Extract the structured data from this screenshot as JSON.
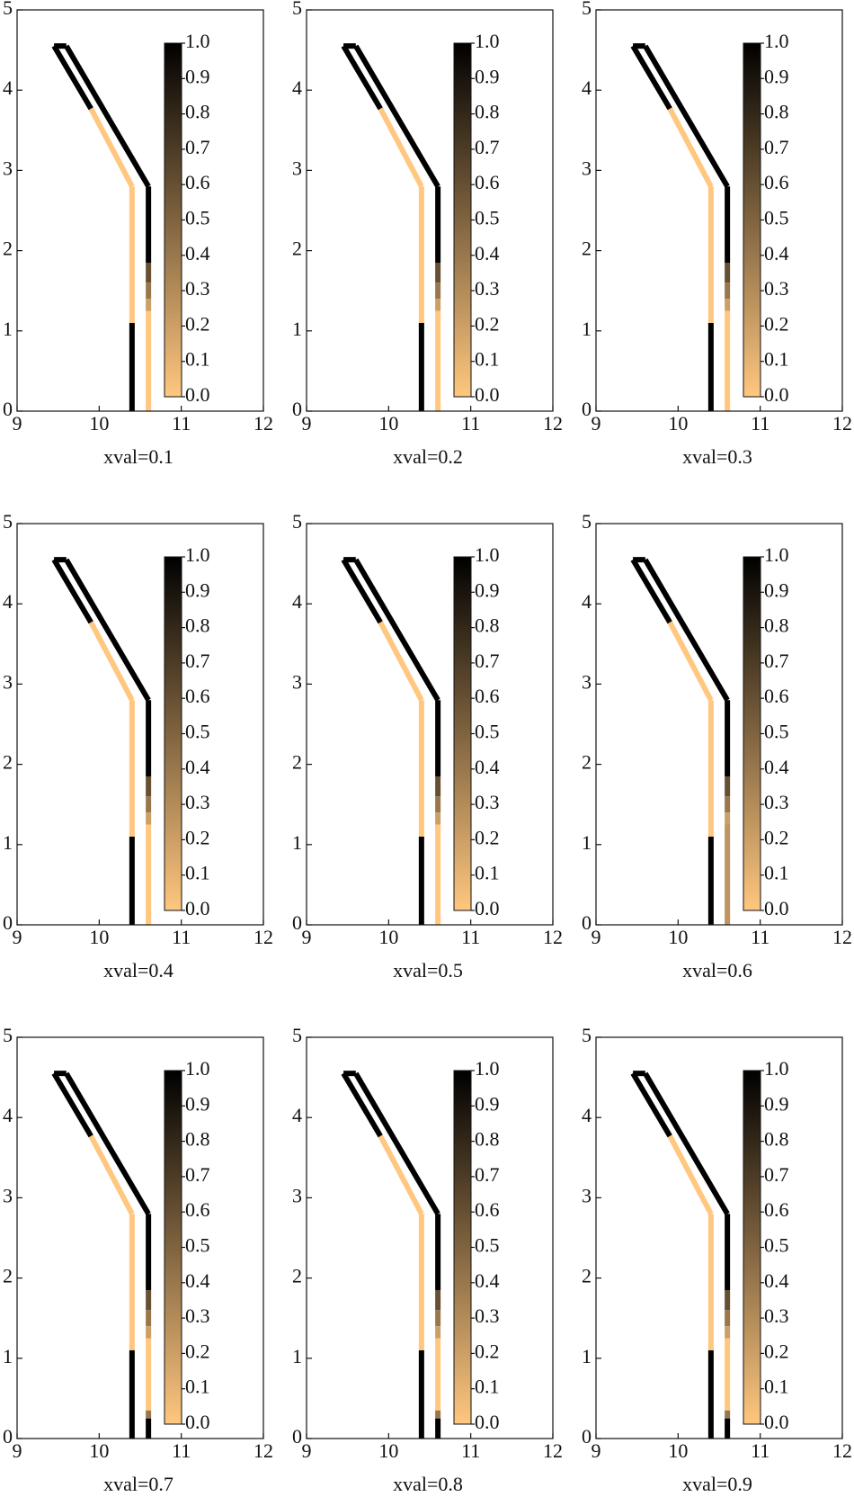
{
  "chart_data": [
    {
      "type": "line",
      "xlabel": "xval=0.1",
      "xlim": [
        9,
        12
      ],
      "ylim": [
        0,
        5
      ],
      "xticks": [
        9,
        10,
        11,
        12
      ],
      "yticks": [
        0,
        1,
        2,
        3,
        4,
        5
      ],
      "clim": [
        0,
        1
      ],
      "cticks": [
        {
          "value": 0,
          "label": "0.0"
        },
        0.1,
        0.2,
        0.3,
        0.4,
        0.5,
        0.6,
        0.7,
        0.8,
        0.9,
        {
          "value": 1,
          "label": "1.0"
        }
      ],
      "colormap": [
        "#ffc77f",
        "#000000"
      ],
      "x": [
        10.4,
        10.4,
        10.4,
        9.9,
        9.45,
        9.6,
        10.6,
        10.6,
        10.6,
        10.6,
        10.6,
        10.6
      ],
      "y": [
        0,
        1.1,
        2.8,
        3.77,
        4.55,
        4.55,
        2.8,
        1.85,
        1.6,
        1.4,
        1.25,
        0
      ],
      "values": [
        1,
        0,
        0,
        1,
        1,
        1,
        1,
        0.6,
        0.4,
        0.2,
        0,
        0
      ]
    },
    {
      "type": "line",
      "xlabel": "xval=0.2",
      "xlim": [
        9,
        12
      ],
      "ylim": [
        0,
        5
      ],
      "xticks": [
        9,
        10,
        11,
        12
      ],
      "yticks": [
        0,
        1,
        2,
        3,
        4,
        5
      ],
      "clim": [
        0,
        1
      ],
      "cticks": [
        {
          "value": 0,
          "label": "0.0"
        },
        0.1,
        0.2,
        0.3,
        0.4,
        0.5,
        0.6,
        0.7,
        0.8,
        0.9,
        {
          "value": 1,
          "label": "1.0"
        }
      ],
      "colormap": [
        "#ffc77f",
        "#000000"
      ],
      "x": [
        10.4,
        10.4,
        10.4,
        9.9,
        9.45,
        9.6,
        10.6,
        10.6,
        10.6,
        10.6,
        10.6,
        10.6
      ],
      "y": [
        0,
        1.1,
        2.8,
        3.77,
        4.55,
        4.55,
        2.8,
        1.85,
        1.6,
        1.4,
        1.25,
        0
      ],
      "values": [
        1,
        0,
        0,
        1,
        1,
        1,
        1,
        0.6,
        0.4,
        0.2,
        0,
        0
      ]
    },
    {
      "type": "line",
      "xlabel": "xval=0.3",
      "xlim": [
        9,
        12
      ],
      "ylim": [
        0,
        5
      ],
      "xticks": [
        9,
        10,
        11,
        12
      ],
      "yticks": [
        0,
        1,
        2,
        3,
        4,
        5
      ],
      "clim": [
        0,
        1
      ],
      "cticks": [
        {
          "value": 0,
          "label": "0.0"
        },
        0.1,
        0.2,
        0.3,
        0.4,
        0.5,
        0.6,
        0.7,
        0.8,
        0.9,
        {
          "value": 1,
          "label": "1.0"
        }
      ],
      "colormap": [
        "#ffc77f",
        "#000000"
      ],
      "x": [
        10.4,
        10.4,
        10.4,
        9.9,
        9.45,
        9.6,
        10.6,
        10.6,
        10.6,
        10.6,
        10.6,
        10.6
      ],
      "y": [
        0,
        1.1,
        2.8,
        3.77,
        4.55,
        4.55,
        2.8,
        1.85,
        1.6,
        1.4,
        1.25,
        0
      ],
      "values": [
        1,
        0,
        0,
        1,
        1,
        1,
        1,
        0.6,
        0.4,
        0.2,
        0,
        0
      ]
    },
    {
      "type": "line",
      "xlabel": "xval=0.4",
      "xlim": [
        9,
        12
      ],
      "ylim": [
        0,
        5
      ],
      "xticks": [
        9,
        10,
        11,
        12
      ],
      "yticks": [
        0,
        1,
        2,
        3,
        4,
        5
      ],
      "clim": [
        0,
        1
      ],
      "cticks": [
        {
          "value": 0,
          "label": "0.0"
        },
        0.1,
        0.2,
        0.3,
        0.4,
        0.5,
        0.6,
        0.7,
        0.8,
        0.9,
        {
          "value": 1,
          "label": "1.0"
        }
      ],
      "colormap": [
        "#ffc77f",
        "#000000"
      ],
      "x": [
        10.4,
        10.4,
        10.4,
        9.9,
        9.45,
        9.6,
        10.6,
        10.6,
        10.6,
        10.6,
        10.6,
        10.6
      ],
      "y": [
        0,
        1.1,
        2.8,
        3.77,
        4.55,
        4.55,
        2.8,
        1.85,
        1.6,
        1.4,
        1.25,
        0
      ],
      "values": [
        1,
        0,
        0,
        1,
        1,
        1,
        1,
        0.6,
        0.4,
        0.2,
        0,
        0
      ]
    },
    {
      "type": "line",
      "xlabel": "xval=0.5",
      "xlim": [
        9,
        12
      ],
      "ylim": [
        0,
        5
      ],
      "xticks": [
        9,
        10,
        11,
        12
      ],
      "yticks": [
        0,
        1,
        2,
        3,
        4,
        5
      ],
      "clim": [
        0,
        1
      ],
      "cticks": [
        {
          "value": 0,
          "label": "0.0"
        },
        0.1,
        0.2,
        0.3,
        0.4,
        0.5,
        0.6,
        0.7,
        0.8,
        0.9,
        {
          "value": 1,
          "label": "1.0"
        }
      ],
      "colormap": [
        "#ffc77f",
        "#000000"
      ],
      "x": [
        10.4,
        10.4,
        10.4,
        9.9,
        9.45,
        9.6,
        10.6,
        10.6,
        10.6,
        10.6,
        10.6,
        10.6
      ],
      "y": [
        0,
        1.1,
        2.8,
        3.77,
        4.55,
        4.55,
        2.8,
        1.85,
        1.6,
        1.4,
        1.25,
        0
      ],
      "values": [
        1,
        0,
        0,
        1,
        1,
        1,
        1,
        0.6,
        0.4,
        0.2,
        0,
        0
      ]
    },
    {
      "type": "line",
      "xlabel": "xval=0.6",
      "xlim": [
        9,
        12
      ],
      "ylim": [
        0,
        5
      ],
      "xticks": [
        9,
        10,
        11,
        12
      ],
      "yticks": [
        0,
        1,
        2,
        3,
        4,
        5
      ],
      "clim": [
        0,
        1
      ],
      "cticks": [
        {
          "value": 0,
          "label": "0.0"
        },
        0.1,
        0.2,
        0.3,
        0.4,
        0.5,
        0.6,
        0.7,
        0.8,
        0.9,
        {
          "value": 1,
          "label": "1.0"
        }
      ],
      "colormap": [
        "#ffc77f",
        "#000000"
      ],
      "x": [
        10.4,
        10.4,
        10.4,
        9.9,
        9.45,
        9.6,
        10.6,
        10.6,
        10.6,
        10.6,
        10.6,
        10.6
      ],
      "y": [
        0,
        1.1,
        2.8,
        3.77,
        4.55,
        4.55,
        2.8,
        1.85,
        1.6,
        1.4,
        1.25,
        0
      ],
      "values": [
        1,
        0,
        0,
        1,
        1,
        1,
        1,
        0.6,
        0.4,
        0.2,
        0.25,
        0.25
      ]
    },
    {
      "type": "line",
      "xlabel": "xval=0.7",
      "xlim": [
        9,
        12
      ],
      "ylim": [
        0,
        5
      ],
      "xticks": [
        9,
        10,
        11,
        12
      ],
      "yticks": [
        0,
        1,
        2,
        3,
        4,
        5
      ],
      "clim": [
        0,
        1
      ],
      "cticks": [
        {
          "value": 0,
          "label": "0.0"
        },
        0.1,
        0.2,
        0.3,
        0.4,
        0.5,
        0.6,
        0.7,
        0.8,
        0.9,
        {
          "value": 1,
          "label": "1.0"
        }
      ],
      "colormap": [
        "#ffc77f",
        "#000000"
      ],
      "x": [
        10.4,
        10.4,
        10.4,
        9.9,
        9.45,
        9.6,
        10.6,
        10.6,
        10.6,
        10.6,
        10.6,
        10.6,
        10.6,
        10.6
      ],
      "y": [
        0,
        1.1,
        2.8,
        3.77,
        4.55,
        4.55,
        2.8,
        1.85,
        1.6,
        1.4,
        1.25,
        0.35,
        0.25,
        0
      ],
      "values": [
        1,
        0,
        0,
        1,
        1,
        1,
        1,
        0.6,
        0.4,
        0.2,
        0,
        0.4,
        1,
        1
      ]
    },
    {
      "type": "line",
      "xlabel": "xval=0.8",
      "xlim": [
        9,
        12
      ],
      "ylim": [
        0,
        5
      ],
      "xticks": [
        9,
        10,
        11,
        12
      ],
      "yticks": [
        0,
        1,
        2,
        3,
        4,
        5
      ],
      "clim": [
        0,
        1
      ],
      "cticks": [
        {
          "value": 0,
          "label": "0.0"
        },
        0.1,
        0.2,
        0.3,
        0.4,
        0.5,
        0.6,
        0.7,
        0.8,
        0.9,
        {
          "value": 1,
          "label": "1.0"
        }
      ],
      "colormap": [
        "#ffc77f",
        "#000000"
      ],
      "x": [
        10.4,
        10.4,
        10.4,
        9.9,
        9.45,
        9.6,
        10.6,
        10.6,
        10.6,
        10.6,
        10.6,
        10.6,
        10.6,
        10.6
      ],
      "y": [
        0,
        1.1,
        2.8,
        3.77,
        4.55,
        4.55,
        2.8,
        1.85,
        1.6,
        1.4,
        1.25,
        0.35,
        0.25,
        0
      ],
      "values": [
        1,
        0,
        0,
        1,
        1,
        1,
        1,
        0.6,
        0.4,
        0.2,
        0,
        0.4,
        1,
        1
      ]
    },
    {
      "type": "line",
      "xlabel": "xval=0.9",
      "xlim": [
        9,
        12
      ],
      "ylim": [
        0,
        5
      ],
      "xticks": [
        9,
        10,
        11,
        12
      ],
      "yticks": [
        0,
        1,
        2,
        3,
        4,
        5
      ],
      "clim": [
        0,
        1
      ],
      "cticks": [
        {
          "value": 0,
          "label": "0.0"
        },
        0.1,
        0.2,
        0.3,
        0.4,
        0.5,
        0.6,
        0.7,
        0.8,
        0.9,
        {
          "value": 1,
          "label": "1.0"
        }
      ],
      "colormap": [
        "#ffc77f",
        "#000000"
      ],
      "x": [
        10.4,
        10.4,
        10.4,
        9.9,
        9.45,
        9.6,
        10.6,
        10.6,
        10.6,
        10.6,
        10.6,
        10.6,
        10.6,
        10.6
      ],
      "y": [
        0,
        1.1,
        2.8,
        3.77,
        4.55,
        4.55,
        2.8,
        1.85,
        1.6,
        1.4,
        1.25,
        0.35,
        0.25,
        0
      ],
      "values": [
        1,
        0,
        0,
        1,
        1,
        1,
        1,
        0.6,
        0.4,
        0.2,
        0,
        0.4,
        1,
        1
      ]
    }
  ]
}
